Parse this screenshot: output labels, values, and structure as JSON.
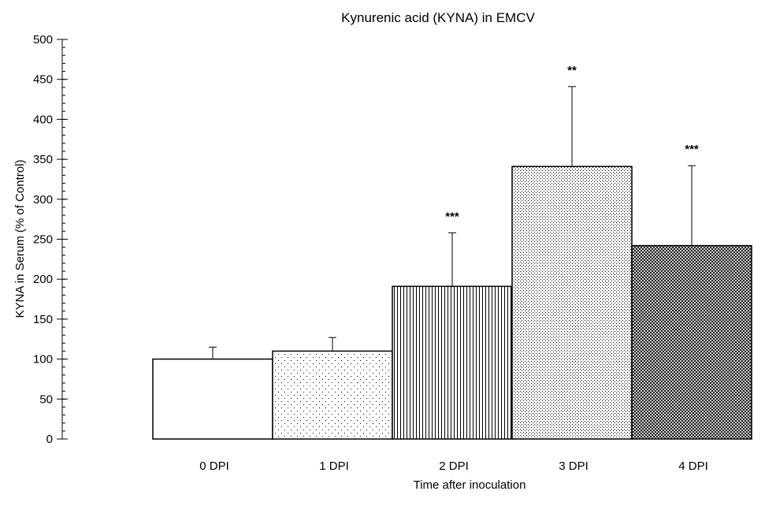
{
  "chart_data": {
    "type": "bar",
    "title": "Kynurenic acid (KYNA) in EMCV",
    "xlabel": "Time after inoculation",
    "ylabel": "KYNA in Serum (% of Control)",
    "ylim": [
      0,
      500
    ],
    "yticks": [
      "0",
      "50",
      "100",
      "150",
      "200",
      "250",
      "300",
      "350",
      "400",
      "450",
      "500"
    ],
    "categories": [
      "0 DPI",
      "1 DPI",
      "2 DPI",
      "3 DPI",
      "4 DPI"
    ],
    "values": [
      100,
      110,
      191,
      341,
      242
    ],
    "error_upper": [
      115,
      127,
      258,
      441,
      342
    ],
    "significance": [
      "",
      "",
      "***",
      "**",
      "***"
    ],
    "patterns": [
      "none",
      "sparse-dots",
      "vertical-lines",
      "dense-dots",
      "crosshatch"
    ],
    "grid": false,
    "legend": "none"
  }
}
